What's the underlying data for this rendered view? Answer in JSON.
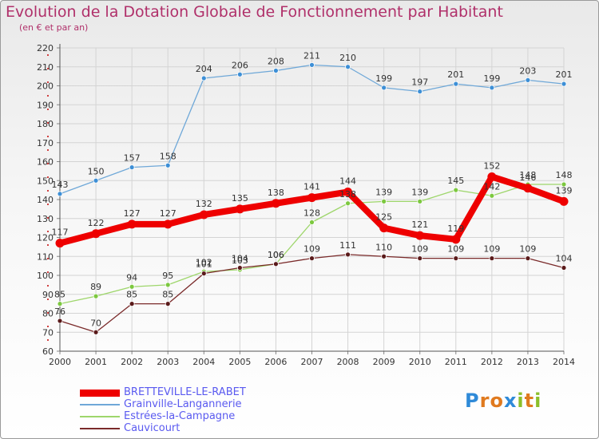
{
  "title": "Evolution de la Dotation Globale de Fonctionnement par Habitant",
  "subtitle": "(en € et par an)",
  "logo": {
    "letters": [
      "P",
      "r",
      "o",
      "x",
      "i",
      "t",
      "i"
    ],
    "colors": [
      "#2f8ad8",
      "#e07a1f",
      "#e07a1f",
      "#2f8ad8",
      "#8bbf2a",
      "#e07a1f",
      "#8bbf2a"
    ]
  },
  "chart_data": {
    "type": "line",
    "x": [
      "2000",
      "2001",
      "2002",
      "2003",
      "2004",
      "2005",
      "2006",
      "2007",
      "2008",
      "2009",
      "2010",
      "2011",
      "2012",
      "2013",
      "2014"
    ],
    "ylim": [
      60,
      220
    ],
    "yticks": [
      60,
      70,
      80,
      90,
      100,
      110,
      120,
      130,
      140,
      150,
      160,
      170,
      180,
      190,
      200,
      210,
      220
    ],
    "grid": true,
    "legend_position": "bottom-left",
    "series": [
      {
        "name": "Grainville-Langannerie",
        "color": "#6fa8d8",
        "marker_color": "#3d8fd6",
        "values": [
          143,
          150,
          157,
          158,
          204,
          206,
          208,
          211,
          210,
          199,
          197,
          201,
          199,
          203,
          201
        ]
      },
      {
        "name": "Estrées-la-Campagne",
        "color": "#9ed66b",
        "marker_color": "#7cc83f",
        "values": [
          85,
          89,
          94,
          95,
          102,
          103,
          106,
          128,
          138,
          139,
          139,
          145,
          142,
          148,
          148
        ]
      },
      {
        "name": "Cauvicourt",
        "color": "#7a2a2a",
        "marker_color": "#5a1a1a",
        "values": [
          76,
          70,
          85,
          85,
          101,
          104,
          106,
          109,
          111,
          110,
          109,
          109,
          109,
          109,
          104
        ]
      },
      {
        "name": "BRETTEVILLE-LE-RABET",
        "color": "#ee0000",
        "marker_color": "#ee0000",
        "values": [
          117,
          122,
          127,
          127,
          132,
          135,
          138,
          141,
          144,
          125,
          121,
          119,
          152,
          146,
          139
        ]
      }
    ],
    "legend_order": [
      "BRETTEVILLE-LE-RABET",
      "Grainville-Langannerie",
      "Estrées-la-Campagne",
      "Cauvicourt"
    ]
  }
}
